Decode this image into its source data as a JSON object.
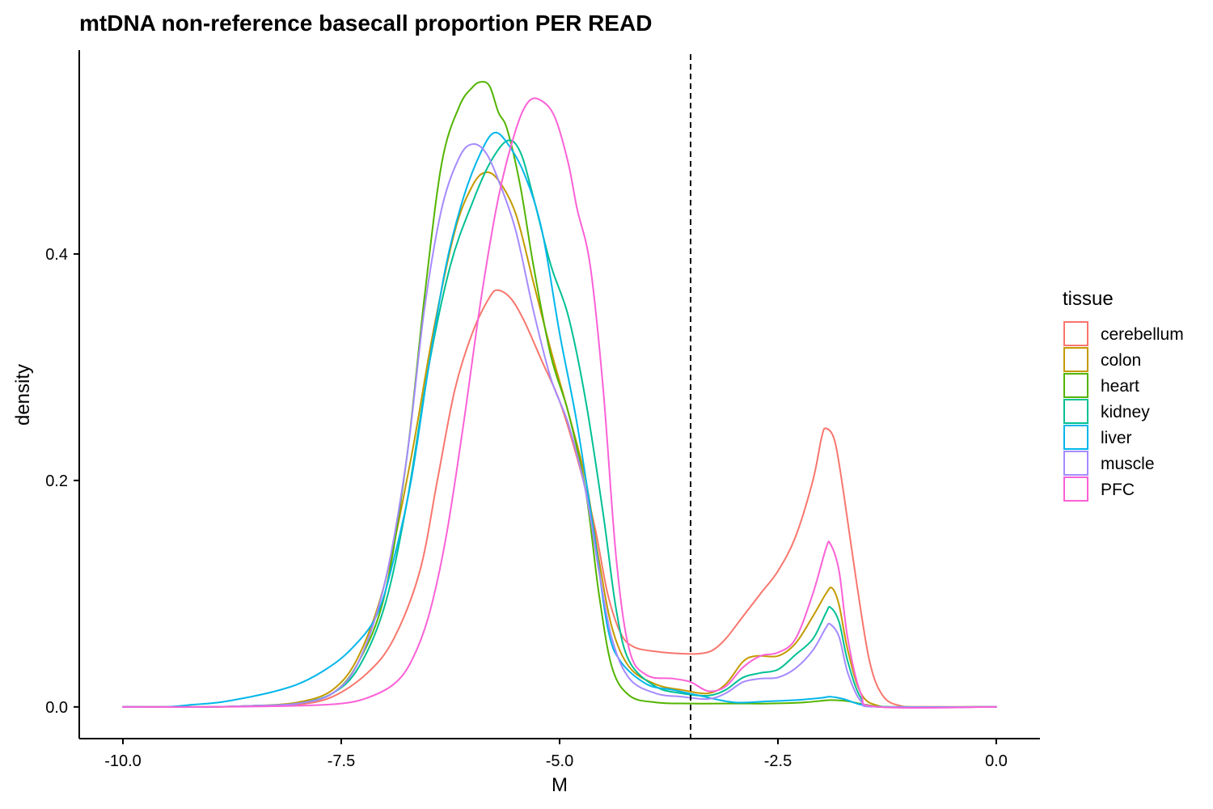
{
  "chart_data": {
    "type": "line",
    "title": "mtDNA non-reference basecall proportion PER READ",
    "xlabel": "M",
    "ylabel": "density",
    "xlim": [
      -10.5,
      0.5
    ],
    "ylim": [
      -0.028,
      0.58
    ],
    "x_ticks": [
      -10.0,
      -7.5,
      -5.0,
      -2.5,
      0.0
    ],
    "x_tick_labels": [
      "-10.0",
      "-7.5",
      "-5.0",
      "-2.5",
      "0.0"
    ],
    "y_ticks": [
      0.0,
      0.2,
      0.4
    ],
    "y_tick_labels": [
      "0.0",
      "0.2",
      "0.4"
    ],
    "vline": {
      "x": -3.5,
      "style": "dashed",
      "color": "#000000"
    },
    "grid": false,
    "legend": {
      "title": "tissue",
      "placement": "right"
    },
    "series": [
      {
        "name": "cerebellum",
        "color": "#F8766D",
        "points": [
          [
            -10,
            0
          ],
          [
            -9,
            0
          ],
          [
            -8.5,
            0.001
          ],
          [
            -8,
            0.002
          ],
          [
            -7.6,
            0.009
          ],
          [
            -7.2,
            0.03
          ],
          [
            -6.9,
            0.06
          ],
          [
            -6.6,
            0.12
          ],
          [
            -6.4,
            0.2
          ],
          [
            -6.2,
            0.28
          ],
          [
            -6,
            0.33
          ],
          [
            -5.8,
            0.362
          ],
          [
            -5.7,
            0.368
          ],
          [
            -5.55,
            0.36
          ],
          [
            -5.4,
            0.34
          ],
          [
            -5.2,
            0.305
          ],
          [
            -5,
            0.27
          ],
          [
            -4.8,
            0.22
          ],
          [
            -4.6,
            0.16
          ],
          [
            -4.45,
            0.1
          ],
          [
            -4.3,
            0.065
          ],
          [
            -4.15,
            0.053
          ],
          [
            -3.9,
            0.049
          ],
          [
            -3.6,
            0.047
          ],
          [
            -3.4,
            0.047
          ],
          [
            -3.25,
            0.05
          ],
          [
            -3.1,
            0.06
          ],
          [
            -2.9,
            0.08
          ],
          [
            -2.7,
            0.1
          ],
          [
            -2.5,
            0.12
          ],
          [
            -2.3,
            0.15
          ],
          [
            -2.1,
            0.2
          ],
          [
            -2,
            0.238
          ],
          [
            -1.95,
            0.246
          ],
          [
            -1.85,
            0.235
          ],
          [
            -1.75,
            0.19
          ],
          [
            -1.6,
            0.11
          ],
          [
            -1.45,
            0.04
          ],
          [
            -1.3,
            0.01
          ],
          [
            -1.1,
            0.001
          ],
          [
            -0.8,
            0
          ],
          [
            0,
            0
          ]
        ]
      },
      {
        "name": "colon",
        "color": "#C49A00",
        "points": [
          [
            -10,
            0
          ],
          [
            -9,
            0
          ],
          [
            -8.5,
            0.001
          ],
          [
            -8,
            0.004
          ],
          [
            -7.6,
            0.015
          ],
          [
            -7.3,
            0.045
          ],
          [
            -7,
            0.11
          ],
          [
            -6.7,
            0.22
          ],
          [
            -6.45,
            0.33
          ],
          [
            -6.2,
            0.42
          ],
          [
            -6,
            0.46
          ],
          [
            -5.85,
            0.472
          ],
          [
            -5.7,
            0.465
          ],
          [
            -5.5,
            0.435
          ],
          [
            -5.3,
            0.375
          ],
          [
            -5.1,
            0.315
          ],
          [
            -4.9,
            0.26
          ],
          [
            -4.7,
            0.2
          ],
          [
            -4.55,
            0.13
          ],
          [
            -4.4,
            0.07
          ],
          [
            -4.2,
            0.035
          ],
          [
            -3.9,
            0.02
          ],
          [
            -3.6,
            0.015
          ],
          [
            -3.3,
            0.012
          ],
          [
            -3.1,
            0.02
          ],
          [
            -2.9,
            0.04
          ],
          [
            -2.75,
            0.045
          ],
          [
            -2.5,
            0.045
          ],
          [
            -2.3,
            0.056
          ],
          [
            -2.1,
            0.08
          ],
          [
            -1.95,
            0.1
          ],
          [
            -1.88,
            0.105
          ],
          [
            -1.8,
            0.09
          ],
          [
            -1.7,
            0.05
          ],
          [
            -1.55,
            0.012
          ],
          [
            -1.35,
            0.001
          ],
          [
            -1,
            0
          ],
          [
            0,
            0
          ]
        ]
      },
      {
        "name": "heart",
        "color": "#53B400",
        "points": [
          [
            -10,
            0
          ],
          [
            -9,
            0
          ],
          [
            -8.5,
            0.001
          ],
          [
            -8,
            0.003
          ],
          [
            -7.6,
            0.012
          ],
          [
            -7.3,
            0.04
          ],
          [
            -7,
            0.1
          ],
          [
            -6.75,
            0.22
          ],
          [
            -6.55,
            0.36
          ],
          [
            -6.35,
            0.48
          ],
          [
            -6.15,
            0.53
          ],
          [
            -6,
            0.547
          ],
          [
            -5.9,
            0.552
          ],
          [
            -5.8,
            0.548
          ],
          [
            -5.7,
            0.525
          ],
          [
            -5.6,
            0.51
          ],
          [
            -5.45,
            0.46
          ],
          [
            -5.3,
            0.39
          ],
          [
            -5.1,
            0.31
          ],
          [
            -4.9,
            0.26
          ],
          [
            -4.7,
            0.19
          ],
          [
            -4.55,
            0.1
          ],
          [
            -4.4,
            0.035
          ],
          [
            -4.2,
            0.01
          ],
          [
            -3.9,
            0.004
          ],
          [
            -3.5,
            0.003
          ],
          [
            -3,
            0.003
          ],
          [
            -2.6,
            0.003
          ],
          [
            -2.2,
            0.004
          ],
          [
            -1.9,
            0.006
          ],
          [
            -1.7,
            0.005
          ],
          [
            -1.5,
            0.002
          ],
          [
            -1.2,
            0
          ],
          [
            0,
            0
          ]
        ]
      },
      {
        "name": "kidney",
        "color": "#00C094",
        "points": [
          [
            -10,
            0
          ],
          [
            -9,
            0
          ],
          [
            -8.5,
            0.001
          ],
          [
            -8,
            0.003
          ],
          [
            -7.6,
            0.012
          ],
          [
            -7.3,
            0.035
          ],
          [
            -7,
            0.09
          ],
          [
            -6.75,
            0.18
          ],
          [
            -6.5,
            0.3
          ],
          [
            -6.25,
            0.39
          ],
          [
            -6,
            0.445
          ],
          [
            -5.8,
            0.48
          ],
          [
            -5.6,
            0.5
          ],
          [
            -5.45,
            0.49
          ],
          [
            -5.3,
            0.45
          ],
          [
            -5.1,
            0.39
          ],
          [
            -4.9,
            0.345
          ],
          [
            -4.7,
            0.27
          ],
          [
            -4.5,
            0.17
          ],
          [
            -4.35,
            0.085
          ],
          [
            -4.2,
            0.04
          ],
          [
            -3.9,
            0.018
          ],
          [
            -3.6,
            0.012
          ],
          [
            -3.3,
            0.01
          ],
          [
            -3.1,
            0.015
          ],
          [
            -2.9,
            0.026
          ],
          [
            -2.7,
            0.03
          ],
          [
            -2.5,
            0.033
          ],
          [
            -2.3,
            0.046
          ],
          [
            -2.1,
            0.06
          ],
          [
            -1.95,
            0.083
          ],
          [
            -1.9,
            0.088
          ],
          [
            -1.8,
            0.075
          ],
          [
            -1.7,
            0.04
          ],
          [
            -1.55,
            0.008
          ],
          [
            -1.35,
            0
          ],
          [
            0,
            0
          ]
        ]
      },
      {
        "name": "liver",
        "color": "#00B6EB",
        "points": [
          [
            -10,
            0
          ],
          [
            -9.5,
            0
          ],
          [
            -9.2,
            0.002
          ],
          [
            -8.9,
            0.004
          ],
          [
            -8.6,
            0.008
          ],
          [
            -8.3,
            0.013
          ],
          [
            -8,
            0.02
          ],
          [
            -7.7,
            0.032
          ],
          [
            -7.4,
            0.05
          ],
          [
            -7.1,
            0.08
          ],
          [
            -6.9,
            0.13
          ],
          [
            -6.7,
            0.2
          ],
          [
            -6.5,
            0.3
          ],
          [
            -6.3,
            0.39
          ],
          [
            -6.1,
            0.45
          ],
          [
            -5.9,
            0.49
          ],
          [
            -5.75,
            0.507
          ],
          [
            -5.6,
            0.498
          ],
          [
            -5.4,
            0.47
          ],
          [
            -5.2,
            0.42
          ],
          [
            -5,
            0.33
          ],
          [
            -4.8,
            0.25
          ],
          [
            -4.6,
            0.15
          ],
          [
            -4.45,
            0.07
          ],
          [
            -4.3,
            0.04
          ],
          [
            -4,
            0.02
          ],
          [
            -3.7,
            0.015
          ],
          [
            -3.4,
            0.01
          ],
          [
            -3,
            0.004
          ],
          [
            -2.6,
            0.005
          ],
          [
            -2.3,
            0.006
          ],
          [
            -2,
            0.008
          ],
          [
            -1.9,
            0.009
          ],
          [
            -1.75,
            0.007
          ],
          [
            -1.55,
            0.002
          ],
          [
            -1.3,
            0
          ],
          [
            0,
            0
          ]
        ]
      },
      {
        "name": "muscle",
        "color": "#A58AFF",
        "points": [
          [
            -10,
            0
          ],
          [
            -9,
            0
          ],
          [
            -8.5,
            0.001
          ],
          [
            -8,
            0.003
          ],
          [
            -7.6,
            0.012
          ],
          [
            -7.3,
            0.04
          ],
          [
            -7,
            0.11
          ],
          [
            -6.75,
            0.22
          ],
          [
            -6.55,
            0.35
          ],
          [
            -6.35,
            0.44
          ],
          [
            -6.15,
            0.485
          ],
          [
            -6,
            0.497
          ],
          [
            -5.85,
            0.49
          ],
          [
            -5.7,
            0.465
          ],
          [
            -5.5,
            0.42
          ],
          [
            -5.3,
            0.35
          ],
          [
            -5.1,
            0.29
          ],
          [
            -4.9,
            0.25
          ],
          [
            -4.7,
            0.19
          ],
          [
            -4.55,
            0.12
          ],
          [
            -4.4,
            0.06
          ],
          [
            -4.2,
            0.025
          ],
          [
            -3.9,
            0.012
          ],
          [
            -3.6,
            0.009
          ],
          [
            -3.3,
            0.007
          ],
          [
            -3.1,
            0.012
          ],
          [
            -2.9,
            0.022
          ],
          [
            -2.7,
            0.025
          ],
          [
            -2.5,
            0.026
          ],
          [
            -2.3,
            0.034
          ],
          [
            -2.1,
            0.05
          ],
          [
            -1.95,
            0.07
          ],
          [
            -1.9,
            0.073
          ],
          [
            -1.8,
            0.062
          ],
          [
            -1.7,
            0.03
          ],
          [
            -1.55,
            0.005
          ],
          [
            -1.35,
            0
          ],
          [
            0,
            0
          ]
        ]
      },
      {
        "name": "PFC",
        "color": "#FB61D7",
        "points": [
          [
            -10,
            0
          ],
          [
            -9,
            0
          ],
          [
            -8,
            0.001
          ],
          [
            -7.5,
            0.003
          ],
          [
            -7.2,
            0.008
          ],
          [
            -6.9,
            0.02
          ],
          [
            -6.7,
            0.04
          ],
          [
            -6.5,
            0.08
          ],
          [
            -6.3,
            0.15
          ],
          [
            -6.1,
            0.25
          ],
          [
            -5.9,
            0.36
          ],
          [
            -5.7,
            0.45
          ],
          [
            -5.5,
            0.51
          ],
          [
            -5.35,
            0.535
          ],
          [
            -5.2,
            0.535
          ],
          [
            -5.05,
            0.52
          ],
          [
            -4.9,
            0.48
          ],
          [
            -4.8,
            0.44
          ],
          [
            -4.65,
            0.39
          ],
          [
            -4.5,
            0.28
          ],
          [
            -4.35,
            0.13
          ],
          [
            -4.2,
            0.05
          ],
          [
            -4,
            0.028
          ],
          [
            -3.7,
            0.025
          ],
          [
            -3.5,
            0.022
          ],
          [
            -3.3,
            0.014
          ],
          [
            -3.1,
            0.018
          ],
          [
            -2.9,
            0.035
          ],
          [
            -2.7,
            0.045
          ],
          [
            -2.5,
            0.048
          ],
          [
            -2.3,
            0.06
          ],
          [
            -2.1,
            0.1
          ],
          [
            -1.95,
            0.14
          ],
          [
            -1.9,
            0.144
          ],
          [
            -1.8,
            0.12
          ],
          [
            -1.7,
            0.06
          ],
          [
            -1.55,
            0.012
          ],
          [
            -1.35,
            0
          ],
          [
            0,
            0
          ]
        ]
      }
    ]
  }
}
